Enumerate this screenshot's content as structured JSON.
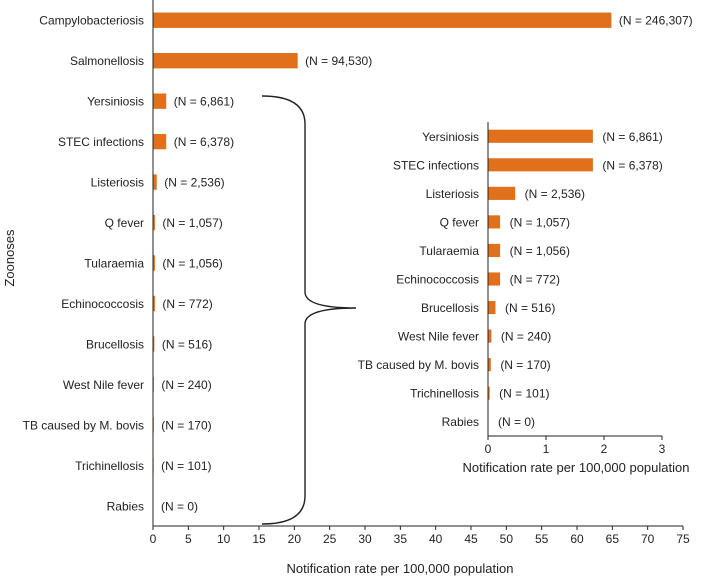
{
  "chart_data": [
    {
      "type": "bar",
      "orientation": "horizontal",
      "title": "",
      "ylabel": "Zoonoses",
      "xlabel": "Notification rate per 100,000  population",
      "xlim": [
        0,
        75
      ],
      "xticks": [
        0,
        5,
        10,
        15,
        20,
        25,
        30,
        35,
        40,
        45,
        50,
        55,
        60,
        65,
        70,
        75
      ],
      "bar_color": "#E0701C",
      "categories": [
        "Campylobacteriosis",
        "Salmonellosis",
        "Yersiniosis",
        "STEC infections",
        "Listeriosis",
        "Q fever",
        "Tularaemia",
        "Echinococcosis",
        "Brucellosis",
        "West Nile fever",
        "TB caused by M. bovis",
        "Trichinellosis",
        "Rabies"
      ],
      "values": [
        64.8,
        20.4,
        1.8,
        1.8,
        0.46,
        0.2,
        0.2,
        0.2,
        0.12,
        0.05,
        0.04,
        0.02,
        0
      ],
      "annotations": [
        "(N = 246,307)",
        "(N = 94,530)",
        "(N = 6,861)",
        "(N = 6,378)",
        "(N = 2,536)",
        "(N = 1,057)",
        "(N = 1,056)",
        "(N = 772)",
        "(N = 516)",
        "(N = 240)",
        "(N = 170)",
        "(N = 101)",
        "(N = 0)"
      ]
    },
    {
      "type": "bar",
      "orientation": "horizontal",
      "title": "",
      "ylabel": "",
      "xlabel": "Notification rate per 100,000  population",
      "xlim": [
        0,
        3
      ],
      "xticks": [
        0,
        1,
        2,
        3
      ],
      "bar_color": "#E0701C",
      "categories": [
        "Yersiniosis",
        "STEC infections",
        "Listeriosis",
        "Q fever",
        "Tularaemia",
        "Echinococcosis",
        "Brucellosis",
        "West Nile fever",
        "TB caused by M. bovis",
        "Trichinellosis",
        "Rabies"
      ],
      "values": [
        1.8,
        1.8,
        0.46,
        0.2,
        0.2,
        0.2,
        0.12,
        0.05,
        0.04,
        0.02,
        0
      ],
      "annotations": [
        "(N = 6,861)",
        "(N = 6,378)",
        "(N = 2,536)",
        "(N = 1,057)",
        "(N = 1,056)",
        "(N = 772)",
        "(N = 516)",
        "(N = 240)",
        "(N = 170)",
        "(N = 101)",
        "(N = 0)"
      ]
    }
  ]
}
